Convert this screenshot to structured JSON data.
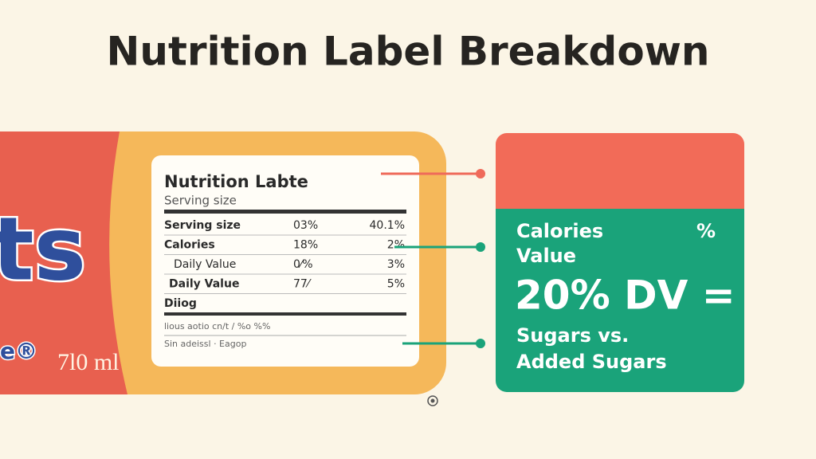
{
  "header": {
    "title": "Nutrition Label Breakdown"
  },
  "package": {
    "brand": "ts",
    "mark": "e®",
    "volume": "7l0 ml"
  },
  "label": {
    "title": "Nutrition Labte",
    "subtitle": "Serving size",
    "rows": [
      [
        "Serving size",
        "03%",
        "40.1%"
      ],
      [
        "Calories",
        "18%",
        "2%"
      ],
      [
        "Daily Value",
        "0⁄%",
        "3%"
      ],
      [
        "Daily Value",
        "77⁄",
        "5%"
      ],
      [
        "Diiog"
      ]
    ],
    "fine_print": [
      "lious aotio cn/t / %o %%",
      "Sin adeissl · Eagop"
    ]
  },
  "panel": {
    "line1": "Calories",
    "percent": "%",
    "line2": "Value",
    "headline": "20% DV =",
    "line3": "Sugars vs.",
    "line4": "Added Sugars"
  }
}
